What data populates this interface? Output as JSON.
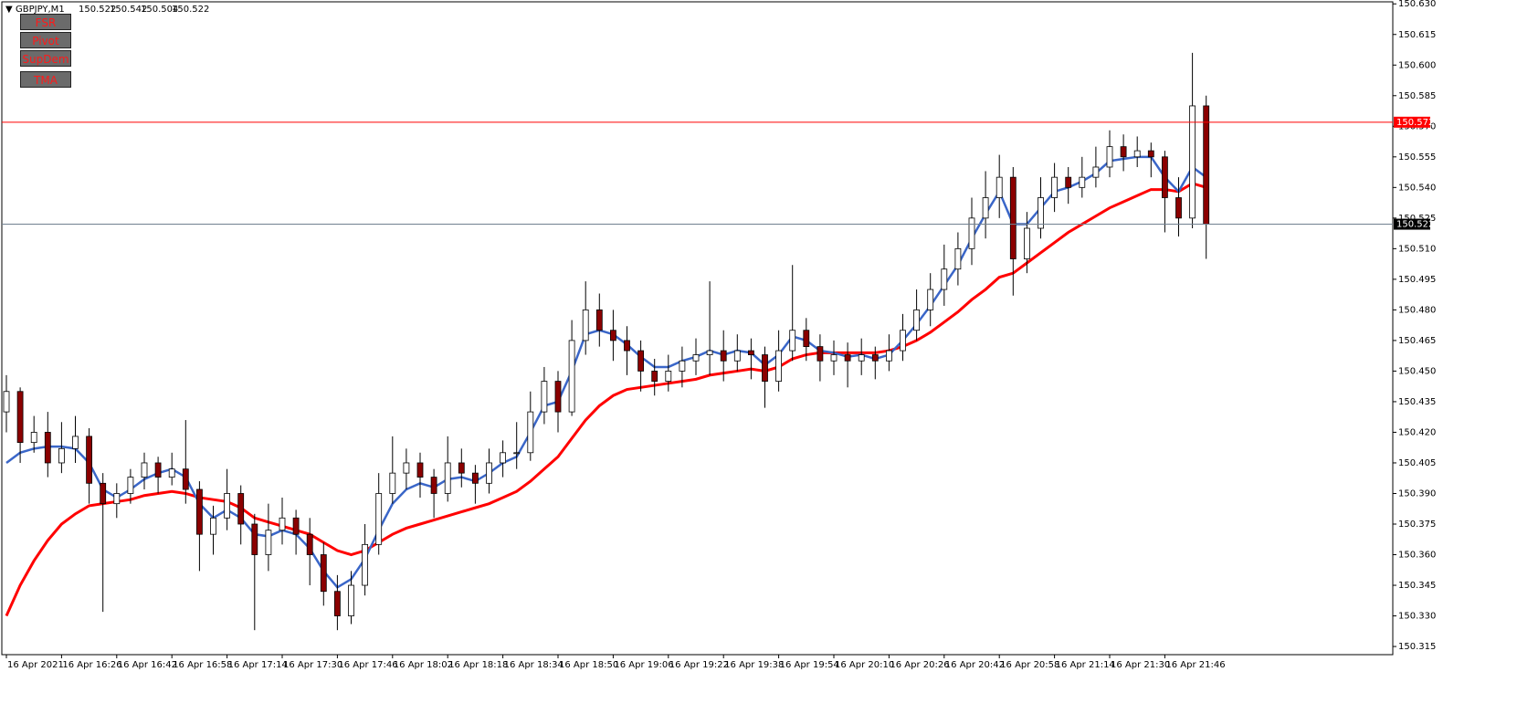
{
  "chart_data": {
    "type": "candlestick",
    "symbol": "GBPJPY,M1",
    "ohlc_text": [
      "150.522",
      "150.542",
      "150.504",
      "150.522"
    ],
    "buttons": [
      "FSR",
      "Pivot",
      "SupDem",
      "TMA"
    ],
    "x_tick_labels": [
      "16 Apr 2021",
      "16 Apr 16:26",
      "16 Apr 16:42",
      "16 Apr 16:58",
      "16 Apr 17:14",
      "16 Apr 17:30",
      "16 Apr 17:46",
      "16 Apr 18:02",
      "16 Apr 18:18",
      "16 Apr 18:34",
      "16 Apr 18:50",
      "16 Apr 19:06",
      "16 Apr 19:22",
      "16 Apr 19:38",
      "16 Apr 19:54",
      "16 Apr 20:10",
      "16 Apr 20:26",
      "16 Apr 20:42",
      "16 Apr 20:58",
      "16 Apr 21:14",
      "16 Apr 21:30",
      "16 Apr 21:46"
    ],
    "ylim": [
      150.311,
      150.631
    ],
    "yticks": [
      150.315,
      {
        "value": 150.33,
        "label": "150.330"
      },
      150.345,
      {
        "value": 150.36,
        "label": "150.360"
      },
      150.375,
      {
        "value": 150.39,
        "label": "150.390"
      },
      150.405,
      {
        "value": 150.42,
        "label": "150.420"
      },
      150.435,
      {
        "value": 150.45,
        "label": "150.450"
      },
      150.465,
      {
        "value": 150.48,
        "label": "150.480"
      },
      150.495,
      {
        "value": 150.51,
        "label": "150.510"
      },
      150.525,
      {
        "value": 150.54,
        "label": "150.540"
      },
      150.555,
      {
        "value": 150.57,
        "label": "150.570"
      },
      150.585,
      {
        "value": 150.6,
        "label": "150.600"
      },
      150.615,
      {
        "value": 150.63,
        "label": "150.630"
      }
    ],
    "up_color": "#ffffff",
    "down_color": "#8b0000",
    "candles": [
      [
        150.43,
        150.448,
        150.42,
        150.44
      ],
      [
        150.44,
        150.442,
        150.405,
        150.415
      ],
      [
        150.415,
        150.428,
        150.41,
        150.42
      ],
      [
        150.42,
        150.43,
        150.398,
        150.405
      ],
      [
        150.405,
        150.425,
        150.4,
        150.412
      ],
      [
        150.412,
        150.428,
        150.405,
        150.418
      ],
      [
        150.418,
        150.422,
        150.385,
        150.395
      ],
      [
        150.395,
        150.4,
        150.332,
        150.385
      ],
      [
        150.385,
        150.395,
        150.378,
        150.39
      ],
      [
        150.39,
        150.402,
        150.385,
        150.398
      ],
      [
        150.398,
        150.41,
        150.392,
        150.405
      ],
      [
        150.405,
        150.408,
        150.39,
        150.398
      ],
      [
        150.398,
        150.41,
        150.394,
        150.402
      ],
      [
        150.402,
        150.426,
        150.385,
        150.392
      ],
      [
        150.392,
        150.396,
        150.352,
        150.37
      ],
      [
        150.37,
        150.384,
        150.36,
        150.378
      ],
      [
        150.378,
        150.402,
        150.372,
        150.39
      ],
      [
        150.39,
        150.394,
        150.365,
        150.375
      ],
      [
        150.375,
        150.38,
        150.323,
        150.36
      ],
      [
        150.36,
        150.385,
        150.352,
        150.372
      ],
      [
        150.372,
        150.388,
        150.365,
        150.378
      ],
      [
        150.378,
        150.382,
        150.36,
        150.37
      ],
      [
        150.37,
        150.378,
        150.345,
        150.36
      ],
      [
        150.36,
        150.366,
        150.335,
        150.342
      ],
      [
        150.342,
        150.35,
        150.323,
        150.33
      ],
      [
        150.33,
        150.352,
        150.326,
        150.345
      ],
      [
        150.345,
        150.375,
        150.34,
        150.365
      ],
      [
        150.365,
        150.4,
        150.36,
        150.39
      ],
      [
        150.39,
        150.418,
        150.385,
        150.4
      ],
      [
        150.4,
        150.412,
        150.392,
        150.405
      ],
      [
        150.405,
        150.41,
        150.388,
        150.398
      ],
      [
        150.398,
        150.402,
        150.378,
        150.39
      ],
      [
        150.39,
        150.418,
        150.386,
        150.405
      ],
      [
        150.405,
        150.412,
        150.393,
        150.4
      ],
      [
        150.4,
        150.404,
        150.385,
        150.395
      ],
      [
        150.395,
        150.412,
        150.39,
        150.405
      ],
      [
        150.405,
        150.416,
        150.398,
        150.41
      ],
      [
        150.41,
        150.425,
        150.402,
        150.41
      ],
      [
        150.41,
        150.44,
        150.406,
        150.43
      ],
      [
        150.43,
        150.452,
        150.424,
        150.445
      ],
      [
        150.445,
        150.45,
        150.42,
        150.43
      ],
      [
        150.43,
        150.475,
        150.428,
        150.465
      ],
      [
        150.465,
        150.494,
        150.458,
        150.48
      ],
      [
        150.48,
        150.488,
        150.462,
        150.47
      ],
      [
        150.47,
        150.48,
        150.455,
        150.465
      ],
      [
        150.465,
        150.472,
        150.448,
        150.46
      ],
      [
        150.46,
        150.465,
        150.44,
        150.45
      ],
      [
        150.45,
        150.456,
        150.438,
        150.445
      ],
      [
        150.445,
        150.458,
        150.44,
        150.45
      ],
      [
        150.45,
        150.462,
        150.442,
        150.455
      ],
      [
        150.455,
        150.466,
        150.448,
        150.458
      ],
      [
        150.458,
        150.494,
        150.448,
        150.46
      ],
      [
        150.46,
        150.47,
        150.445,
        150.455
      ],
      [
        150.455,
        150.468,
        150.45,
        150.46
      ],
      [
        150.46,
        150.466,
        150.446,
        150.458
      ],
      [
        150.458,
        150.462,
        150.432,
        150.445
      ],
      [
        150.445,
        150.47,
        150.44,
        150.46
      ],
      [
        150.46,
        150.502,
        150.455,
        150.47
      ],
      [
        150.47,
        150.476,
        150.455,
        150.462
      ],
      [
        150.462,
        150.468,
        150.445,
        150.455
      ],
      [
        150.455,
        150.465,
        150.448,
        150.458
      ],
      [
        150.458,
        150.464,
        150.442,
        150.455
      ],
      [
        150.455,
        150.466,
        150.448,
        150.458
      ],
      [
        150.458,
        150.462,
        150.446,
        150.455
      ],
      [
        150.455,
        150.468,
        150.45,
        150.46
      ],
      [
        150.46,
        150.478,
        150.455,
        150.47
      ],
      [
        150.47,
        150.49,
        150.465,
        150.48
      ],
      [
        150.48,
        150.498,
        150.472,
        150.49
      ],
      [
        150.49,
        150.512,
        150.482,
        150.5
      ],
      [
        150.5,
        150.518,
        150.492,
        150.51
      ],
      [
        150.51,
        150.535,
        150.502,
        150.525
      ],
      [
        150.525,
        150.548,
        150.515,
        150.535
      ],
      [
        150.535,
        150.556,
        150.525,
        150.545
      ],
      [
        150.545,
        150.55,
        150.487,
        150.505
      ],
      [
        150.505,
        150.528,
        150.498,
        150.52
      ],
      [
        150.52,
        150.545,
        150.515,
        150.535
      ],
      [
        150.535,
        150.552,
        150.528,
        150.545
      ],
      [
        150.545,
        150.55,
        150.532,
        150.54
      ],
      [
        150.54,
        150.555,
        150.535,
        150.545
      ],
      [
        150.545,
        150.56,
        150.54,
        150.55
      ],
      [
        150.55,
        150.568,
        150.545,
        150.56
      ],
      [
        150.56,
        150.566,
        150.548,
        150.555
      ],
      [
        150.555,
        150.565,
        150.55,
        150.558
      ],
      [
        150.558,
        150.562,
        150.545,
        150.555
      ],
      [
        150.555,
        150.558,
        150.518,
        150.535
      ],
      [
        150.535,
        150.545,
        150.516,
        150.525
      ],
      [
        150.525,
        150.606,
        150.52,
        150.58
      ],
      [
        150.58,
        150.585,
        150.505,
        150.522
      ]
    ],
    "series": [
      {
        "color": "#ff0000",
        "values": [
          150.33,
          150.345,
          150.357,
          150.367,
          150.375,
          150.38,
          150.384,
          150.385,
          150.386,
          150.387,
          150.389,
          150.39,
          150.391,
          150.39,
          150.388,
          150.387,
          150.386,
          150.383,
          150.378,
          150.376,
          150.374,
          150.372,
          150.37,
          150.366,
          150.362,
          150.36,
          150.362,
          150.366,
          150.37,
          150.373,
          150.375,
          150.377,
          150.379,
          150.381,
          150.383,
          150.385,
          150.388,
          150.391,
          150.396,
          150.402,
          150.408,
          150.417,
          150.426,
          150.433,
          150.438,
          150.441,
          150.442,
          150.443,
          150.444,
          150.445,
          150.446,
          150.448,
          150.449,
          150.45,
          150.451,
          150.45,
          150.452,
          150.456,
          150.458,
          150.459,
          150.459,
          150.459,
          150.459,
          150.459,
          150.46,
          150.462,
          150.465,
          150.469,
          150.474,
          150.479,
          150.485,
          150.49,
          150.496,
          150.498,
          150.503,
          150.508,
          150.513,
          150.518,
          150.522,
          150.526,
          150.53,
          150.533,
          150.536,
          150.539,
          150.539,
          150.538,
          150.542,
          150.54
        ]
      },
      {
        "color": "#3a66c8",
        "values": [
          150.405,
          150.41,
          150.412,
          150.413,
          150.413,
          150.412,
          150.405,
          150.392,
          150.388,
          150.392,
          150.397,
          150.4,
          150.402,
          150.398,
          150.385,
          150.378,
          150.382,
          150.378,
          150.37,
          150.369,
          150.372,
          150.37,
          150.363,
          150.352,
          150.344,
          150.348,
          150.358,
          150.372,
          150.385,
          150.392,
          150.395,
          150.393,
          150.397,
          150.398,
          150.396,
          150.4,
          150.405,
          150.408,
          150.42,
          150.433,
          150.435,
          150.45,
          150.468,
          150.47,
          150.468,
          150.463,
          150.457,
          150.452,
          150.452,
          150.455,
          150.457,
          150.46,
          150.458,
          150.46,
          150.459,
          150.453,
          150.458,
          150.467,
          150.465,
          150.46,
          150.459,
          150.457,
          150.458,
          150.456,
          150.458,
          150.465,
          150.473,
          150.482,
          150.492,
          150.502,
          150.515,
          150.527,
          150.538,
          150.522,
          150.522,
          150.53,
          150.538,
          150.54,
          150.543,
          150.547,
          150.553,
          150.554,
          150.555,
          150.555,
          150.545,
          150.538,
          150.55,
          150.545
        ]
      }
    ],
    "levels": [
      {
        "value": 150.572,
        "color": "#ff0000"
      },
      {
        "value": 150.522,
        "color": "#708090"
      }
    ]
  }
}
